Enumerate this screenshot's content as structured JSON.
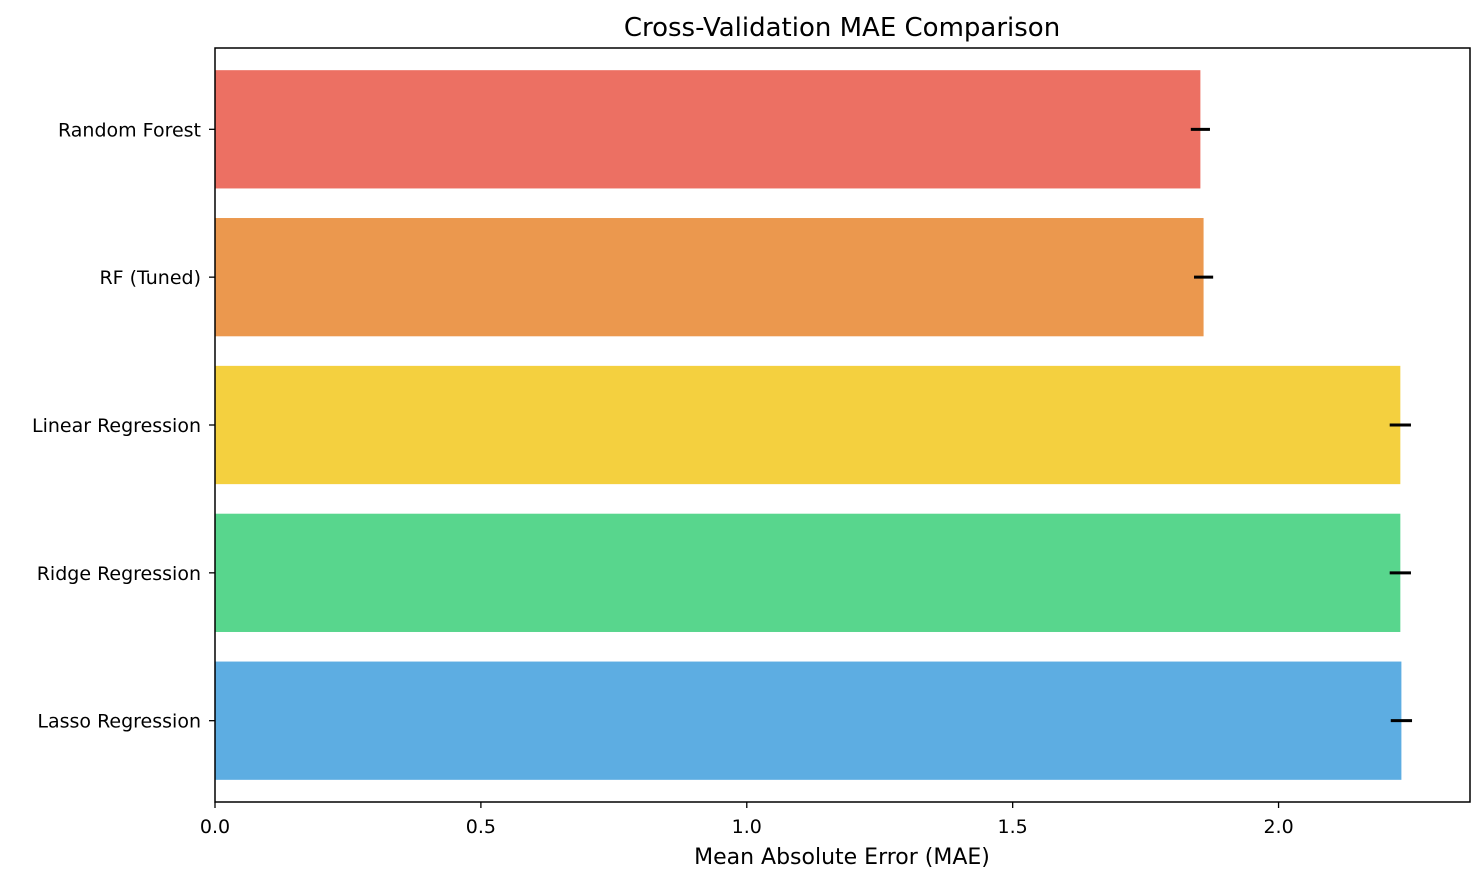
{
  "chart_data": {
    "type": "bar",
    "orientation": "horizontal",
    "title": "Cross-Validation MAE Comparison",
    "xlabel": "Mean Absolute Error (MAE)",
    "ylabel": "",
    "xlim": [
      0,
      2.36
    ],
    "xticks": [
      "0.0",
      "0.5",
      "1.0",
      "1.5",
      "2.0"
    ],
    "xtick_values": [
      0,
      0.5,
      1.0,
      1.5,
      2.0
    ],
    "grid": false,
    "categories": [
      "Random Forest",
      "RF (Tuned)",
      "Linear Regression",
      "Ridge Regression",
      "Lasso Regression"
    ],
    "values": [
      1.853,
      1.859,
      2.229,
      2.229,
      2.231
    ],
    "errors": [
      0.018,
      0.018,
      0.02,
      0.02,
      0.02
    ],
    "colors": [
      "#ec7063",
      "#eb984e",
      "#f4d03f",
      "#58d68d",
      "#5dade2"
    ],
    "error_color": "#000000"
  }
}
